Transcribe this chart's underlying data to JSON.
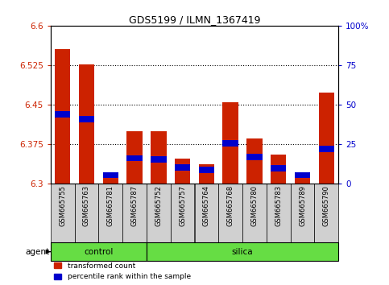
{
  "title": "GDS5199 / ILMN_1367419",
  "samples": [
    "GSM665755",
    "GSM665763",
    "GSM665781",
    "GSM665787",
    "GSM665752",
    "GSM665757",
    "GSM665764",
    "GSM665768",
    "GSM665780",
    "GSM665783",
    "GSM665789",
    "GSM665790"
  ],
  "red_values": [
    6.555,
    6.526,
    6.321,
    6.4,
    6.4,
    6.348,
    6.337,
    6.455,
    6.385,
    6.355,
    6.321,
    6.473
  ],
  "blue_values": [
    6.432,
    6.422,
    6.316,
    6.348,
    6.346,
    6.331,
    6.326,
    6.377,
    6.351,
    6.329,
    6.316,
    6.366
  ],
  "ylim_left": [
    6.3,
    6.6
  ],
  "ylim_right": [
    0,
    100
  ],
  "yticks_left": [
    6.3,
    6.375,
    6.45,
    6.525,
    6.6
  ],
  "yticks_right": [
    0,
    25,
    50,
    75,
    100
  ],
  "ytick_labels_left": [
    "6.3",
    "6.375",
    "6.45",
    "6.525",
    "6.6"
  ],
  "ytick_labels_right": [
    "0",
    "25",
    "50",
    "75",
    "100%"
  ],
  "red_color": "#cc2200",
  "blue_color": "#0000cc",
  "bar_width": 0.65,
  "bg_xtick": "#d0d0d0",
  "green_color": "#66dd44",
  "agent_label": "agent",
  "control_label": "control",
  "silica_label": "silica",
  "legend_red": "transformed count",
  "legend_blue": "percentile rank within the sample",
  "n_control": 4,
  "n_silica": 8
}
